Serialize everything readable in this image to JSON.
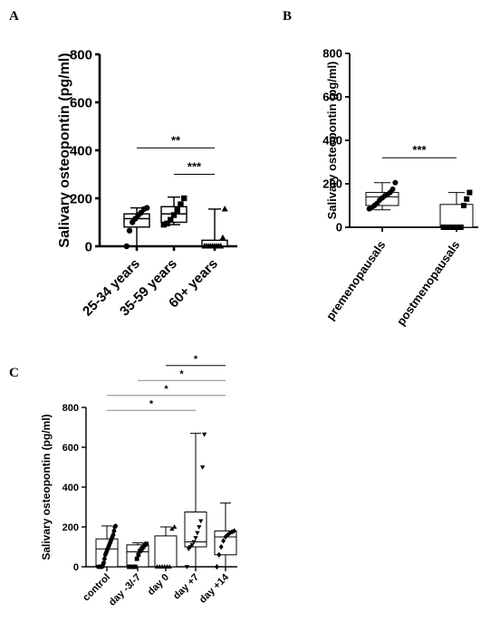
{
  "chart_data": [
    {
      "panel": "A",
      "type": "box",
      "ylabel": "Salivary osteopontin (pg/ml)",
      "ylim": [
        0,
        800
      ],
      "yticks": [
        0,
        200,
        400,
        600,
        800
      ],
      "categories": [
        "25-34 years",
        "35-59 years",
        "60+ years"
      ],
      "series": [
        {
          "category": "25-34 years",
          "marker": "circle",
          "min": 0,
          "q1": 80,
          "median": 115,
          "q3": 135,
          "max": 160,
          "points": [
            0,
            65,
            100,
            115,
            130,
            140,
            155,
            160
          ]
        },
        {
          "category": "35-59 years",
          "marker": "square",
          "min": 90,
          "q1": 100,
          "median": 135,
          "q3": 165,
          "max": 205,
          "points": [
            90,
            95,
            110,
            130,
            150,
            175,
            200
          ]
        },
        {
          "category": "60+ years",
          "marker": "triangle",
          "min": 0,
          "q1": 0,
          "median": 0,
          "q3": 25,
          "max": 155,
          "points": [
            0,
            0,
            0,
            0,
            0,
            0,
            0,
            0,
            0,
            35,
            155
          ]
        }
      ],
      "significance": [
        {
          "from": "25-34 years",
          "to": "60+ years",
          "label": "**",
          "y": 410
        },
        {
          "from": "35-59 years",
          "to": "60+ years",
          "label": "***",
          "y": 300
        }
      ]
    },
    {
      "panel": "B",
      "type": "box",
      "ylabel": "Salivary osteopontin (pg/ml)",
      "ylim": [
        0,
        800
      ],
      "yticks": [
        0,
        200,
        400,
        600,
        800
      ],
      "categories": [
        "premenopausals",
        "postmenopausals"
      ],
      "series": [
        {
          "category": "premenopausals",
          "marker": "circle",
          "min": 80,
          "q1": 100,
          "median": 140,
          "q3": 160,
          "max": 205,
          "points": [
            85,
            90,
            100,
            110,
            125,
            135,
            145,
            150,
            160,
            175,
            205
          ]
        },
        {
          "category": "postmenopausals",
          "marker": "square",
          "min": 0,
          "q1": 0,
          "median": 0,
          "q3": 105,
          "max": 160,
          "points": [
            0,
            0,
            0,
            0,
            0,
            0,
            0,
            100,
            130,
            160
          ]
        }
      ],
      "significance": [
        {
          "from": "premenopausals",
          "to": "postmenopausals",
          "label": "***",
          "y": 320
        }
      ]
    },
    {
      "panel": "C",
      "type": "box",
      "ylabel": "Salivary osteopontin (pg/ml)",
      "ylim": [
        0,
        800
      ],
      "yticks": [
        0,
        200,
        400,
        600,
        800
      ],
      "categories": [
        "control",
        "day -3/-7",
        "day 0",
        "day +7",
        "day +14"
      ],
      "series": [
        {
          "category": "control",
          "marker": "circle",
          "min": 0,
          "q1": 0,
          "median": 90,
          "q3": 140,
          "max": 205,
          "points": [
            0,
            0,
            0,
            0,
            0,
            0,
            10,
            20,
            40,
            60,
            70,
            80,
            90,
            100,
            110,
            120,
            130,
            140,
            150,
            160,
            180,
            200,
            205
          ]
        },
        {
          "category": "day -3/-7",
          "marker": "square",
          "min": 0,
          "q1": 0,
          "median": 75,
          "q3": 110,
          "max": 120,
          "points": [
            0,
            0,
            0,
            0,
            0,
            40,
            60,
            80,
            90,
            100,
            110,
            115
          ]
        },
        {
          "category": "day 0",
          "marker": "triangle",
          "min": 0,
          "q1": 0,
          "median": 0,
          "q3": 155,
          "max": 200,
          "points": [
            0,
            0,
            0,
            0,
            0,
            0,
            190,
            200
          ]
        },
        {
          "category": "day +7",
          "marker": "triangle-down",
          "min": 0,
          "q1": 100,
          "median": 125,
          "q3": 275,
          "max": 670,
          "points": [
            0,
            90,
            100,
            110,
            125,
            145,
            170,
            200,
            230,
            500,
            665
          ]
        },
        {
          "category": "day +14",
          "marker": "diamond",
          "min": 0,
          "q1": 60,
          "median": 150,
          "q3": 180,
          "max": 320,
          "points": [
            0,
            60,
            100,
            130,
            150,
            160,
            170,
            175,
            180
          ]
        }
      ],
      "significance": [
        {
          "from": "control",
          "to": "day +7",
          "label": "*",
          "y": 785
        },
        {
          "from": "control",
          "to": "day +14",
          "label": "*",
          "y": 860
        },
        {
          "from": "day -3/-7",
          "to": "day +14",
          "label": "*",
          "y": 935
        },
        {
          "from": "day 0",
          "to": "day +14",
          "label": "*",
          "y": 1010
        }
      ]
    }
  ]
}
